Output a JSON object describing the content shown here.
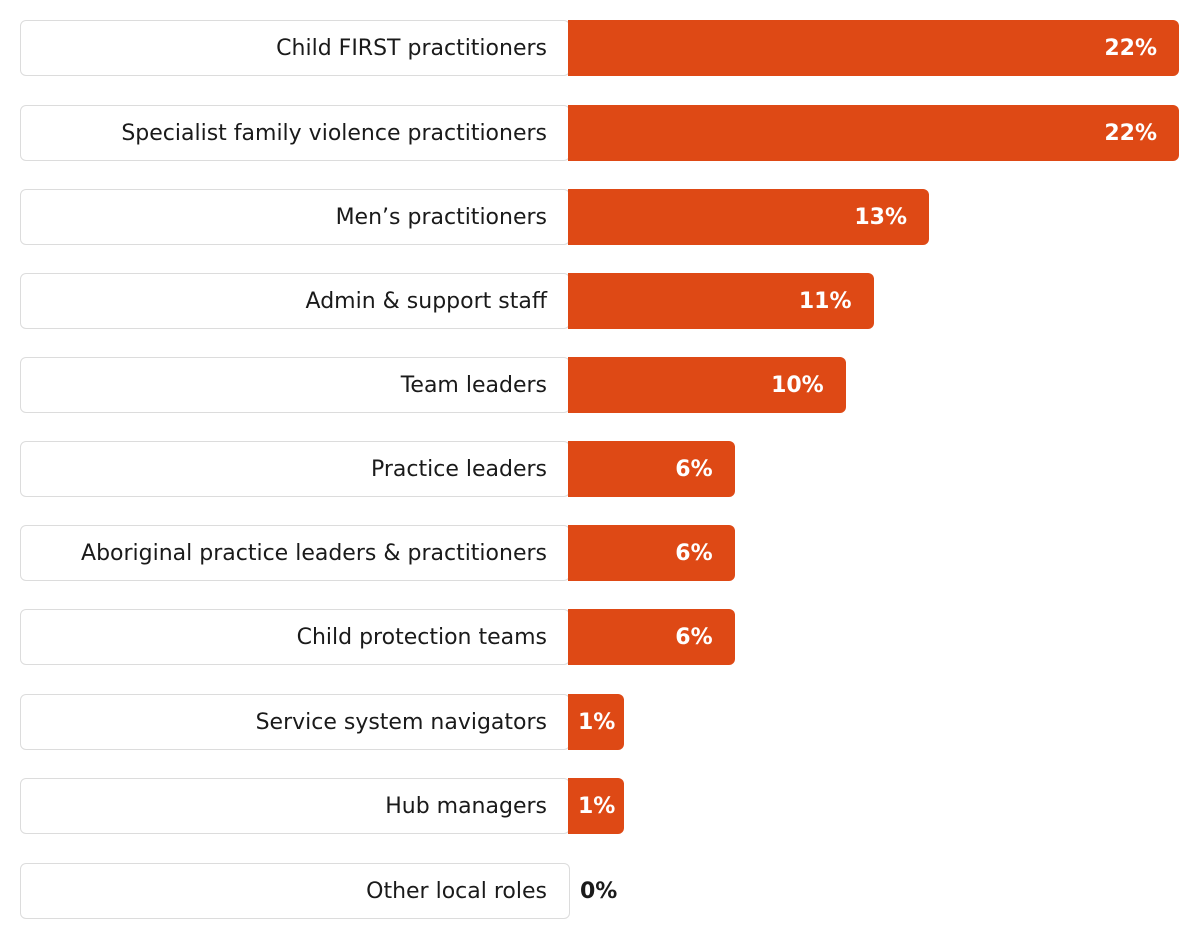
{
  "chart_data": {
    "type": "bar",
    "orientation": "horizontal",
    "categories": [
      "Child FIRST practitioners",
      "Specialist family violence practitioners",
      "Men’s practitioners",
      "Admin & support staff",
      "Team leaders",
      "Practice leaders",
      "Aboriginal practice leaders & practitioners",
      "Child protection teams",
      "Service system navigators",
      "Hub managers",
      "Other local roles"
    ],
    "values": [
      22,
      22,
      13,
      11,
      10,
      6,
      6,
      6,
      1,
      1,
      0
    ],
    "value_labels": [
      "22%",
      "22%",
      "13%",
      "11%",
      "10%",
      "6%",
      "6%",
      "6%",
      "1%",
      "1%",
      "0%"
    ],
    "unit": "%",
    "xlim": [
      0,
      22
    ],
    "grid": false,
    "legend": "none"
  },
  "colors": {
    "bar": "#de4915",
    "label_on_bar": "#ffffff",
    "label_off_bar": "#1a1a1a",
    "category_text": "#1a1a1a",
    "box_border": "#dcdcdc"
  }
}
